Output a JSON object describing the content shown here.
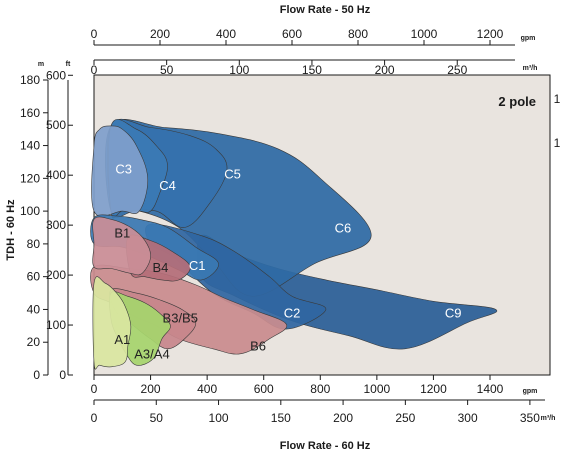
{
  "chart_data": {
    "type": "area",
    "title_top": "Flow Rate - 50 Hz",
    "xlabel_bottom": "Flow Rate - 60 Hz",
    "ylabel_left": "TDH - 60 Hz",
    "annotation": "2 pole",
    "unit_m": "m",
    "unit_ft": "ft",
    "unit_gpm": "gpm",
    "unit_m3h": "m³/h",
    "axis_top_gpm": [
      "0",
      "200",
      "400",
      "600",
      "800",
      "1000",
      "1200"
    ],
    "axis_top_m3h": [
      "0",
      "50",
      "100",
      "150",
      "200",
      "250"
    ],
    "axis_bottom_gpm": [
      "0",
      "200",
      "400",
      "600",
      "800",
      "1000",
      "1200",
      "1400"
    ],
    "axis_bottom_m3h": [
      "0",
      "50",
      "100",
      "150",
      "200",
      "250",
      "300",
      "350"
    ],
    "axis_left_m": [
      "0",
      "20",
      "40",
      "60",
      "80",
      "100",
      "120",
      "140",
      "160",
      "180"
    ],
    "axis_left_ft": [
      "0",
      "100",
      "200",
      "300",
      "400",
      "500",
      "600"
    ],
    "right_edge_fragments": [
      "1",
      "1",
      "",
      ""
    ],
    "x_gpm_range": [
      0,
      1600
    ],
    "y_m_range": [
      0,
      180
    ],
    "series": [
      {
        "name": "C9",
        "color": "#2a5f97",
        "label_at": [
          1270,
          38
        ],
        "outline": [
          [
            380,
            85
          ],
          [
            500,
            74
          ],
          [
            650,
            65
          ],
          [
            820,
            58
          ],
          [
            1000,
            52
          ],
          [
            1200,
            45
          ],
          [
            1420,
            40
          ],
          [
            1320,
            32
          ],
          [
            1100,
            16
          ],
          [
            900,
            24
          ],
          [
            700,
            33
          ],
          [
            500,
            48
          ],
          [
            380,
            60
          ]
        ]
      },
      {
        "name": "C6",
        "color": "#2e6aa5",
        "label_at": [
          880,
          90
        ],
        "outline": [
          [
            60,
            152
          ],
          [
            250,
            151
          ],
          [
            450,
            147
          ],
          [
            650,
            138
          ],
          [
            800,
            120
          ],
          [
            980,
            85
          ],
          [
            780,
            68
          ],
          [
            560,
            48
          ],
          [
            420,
            70
          ],
          [
            300,
            90
          ],
          [
            160,
            100
          ],
          [
            60,
            100
          ]
        ]
      },
      {
        "name": "C5",
        "color": "#3571ad",
        "label_at": [
          490,
          123
        ],
        "outline": [
          [
            60,
            152
          ],
          [
            200,
            151
          ],
          [
            340,
            146
          ],
          [
            430,
            138
          ],
          [
            470,
            125
          ],
          [
            410,
            105
          ],
          [
            320,
            90
          ],
          [
            220,
            100
          ],
          [
            100,
            100
          ],
          [
            60,
            100
          ]
        ]
      },
      {
        "name": "C4",
        "color": "#3b7ab5",
        "label_at": [
          260,
          116
        ],
        "outline": [
          [
            60,
            152
          ],
          [
            150,
            150
          ],
          [
            220,
            140
          ],
          [
            260,
            128
          ],
          [
            230,
            110
          ],
          [
            200,
            100
          ],
          [
            160,
            100
          ],
          [
            100,
            100
          ],
          [
            60,
            100
          ]
        ]
      },
      {
        "name": "C3",
        "color": "#7f9fcb",
        "label_at": [
          105,
          126
        ],
        "outline": [
          [
            0,
            100
          ],
          [
            0,
            140
          ],
          [
            20,
            150
          ],
          [
            60,
            152
          ],
          [
            100,
            150
          ],
          [
            150,
            140
          ],
          [
            190,
            120
          ],
          [
            160,
            100
          ],
          [
            100,
            100
          ]
        ]
      },
      {
        "name": "C2",
        "color": "#2f66a1",
        "label_at": [
          700,
          38
        ],
        "outline": [
          [
            200,
            92
          ],
          [
            380,
            85
          ],
          [
            500,
            75
          ],
          [
            620,
            60
          ],
          [
            700,
            48
          ],
          [
            820,
            40
          ],
          [
            680,
            28
          ],
          [
            560,
            38
          ],
          [
            420,
            50
          ],
          [
            280,
            72
          ],
          [
            200,
            80
          ]
        ]
      },
      {
        "name": "C1",
        "color": "#3a78b3",
        "label_at": [
          365,
          67
        ],
        "outline": [
          [
            0,
            96
          ],
          [
            80,
            97
          ],
          [
            160,
            95
          ],
          [
            260,
            90
          ],
          [
            360,
            78
          ],
          [
            440,
            68
          ],
          [
            380,
            58
          ],
          [
            300,
            64
          ],
          [
            200,
            72
          ],
          [
            100,
            78
          ],
          [
            0,
            80
          ]
        ]
      },
      {
        "name": "B6",
        "color": "#c98c8e",
        "label_at": [
          580,
          18
        ],
        "outline": [
          [
            0,
            66
          ],
          [
            120,
            65
          ],
          [
            240,
            62
          ],
          [
            360,
            55
          ],
          [
            460,
            47
          ],
          [
            560,
            40
          ],
          [
            680,
            31
          ],
          [
            620,
            22
          ],
          [
            520,
            13
          ],
          [
            420,
            16
          ],
          [
            300,
            22
          ],
          [
            220,
            30
          ],
          [
            140,
            36
          ],
          [
            60,
            44
          ],
          [
            0,
            50
          ]
        ]
      },
      {
        "name": "B4",
        "color": "#b46e78",
        "label_at": [
          235,
          66
        ],
        "outline": [
          [
            120,
            84
          ],
          [
            200,
            82
          ],
          [
            280,
            75
          ],
          [
            340,
            66
          ],
          [
            300,
            58
          ],
          [
            240,
            58
          ],
          [
            180,
            60
          ],
          [
            130,
            62
          ]
        ]
      },
      {
        "name": "B1",
        "color": "#ca8e97",
        "label_at": [
          100,
          87
        ],
        "outline": [
          [
            0,
            80
          ],
          [
            0,
            95
          ],
          [
            60,
            95
          ],
          [
            130,
            90
          ],
          [
            180,
            82
          ],
          [
            200,
            72
          ],
          [
            170,
            62
          ],
          [
            130,
            62
          ],
          [
            60,
            65
          ],
          [
            0,
            66
          ]
        ]
      },
      {
        "name": "B3/B5",
        "color": "#c7868c",
        "label_at": [
          305,
          35
        ],
        "outline": [
          [
            60,
            52
          ],
          [
            150,
            50
          ],
          [
            230,
            46
          ],
          [
            310,
            40
          ],
          [
            360,
            32
          ],
          [
            320,
            22
          ],
          [
            260,
            16
          ],
          [
            200,
            22
          ],
          [
            140,
            30
          ],
          [
            80,
            38
          ]
        ]
      },
      {
        "name": "A3/A4",
        "color": "#a6d46d",
        "label_at": [
          205,
          13
        ],
        "outline": [
          [
            60,
            50
          ],
          [
            120,
            48
          ],
          [
            180,
            44
          ],
          [
            230,
            38
          ],
          [
            270,
            30
          ],
          [
            240,
            22
          ],
          [
            210,
            10
          ],
          [
            150,
            6
          ],
          [
            110,
            14
          ],
          [
            80,
            24
          ],
          [
            60,
            34
          ]
        ]
      },
      {
        "name": "A1",
        "color": "#d9e6a0",
        "label_at": [
          100,
          22
        ],
        "outline": [
          [
            0,
            56
          ],
          [
            40,
            56
          ],
          [
            80,
            50
          ],
          [
            110,
            42
          ],
          [
            130,
            30
          ],
          [
            120,
            18
          ],
          [
            110,
            8
          ],
          [
            60,
            5
          ],
          [
            20,
            6
          ],
          [
            0,
            8
          ]
        ]
      }
    ]
  }
}
